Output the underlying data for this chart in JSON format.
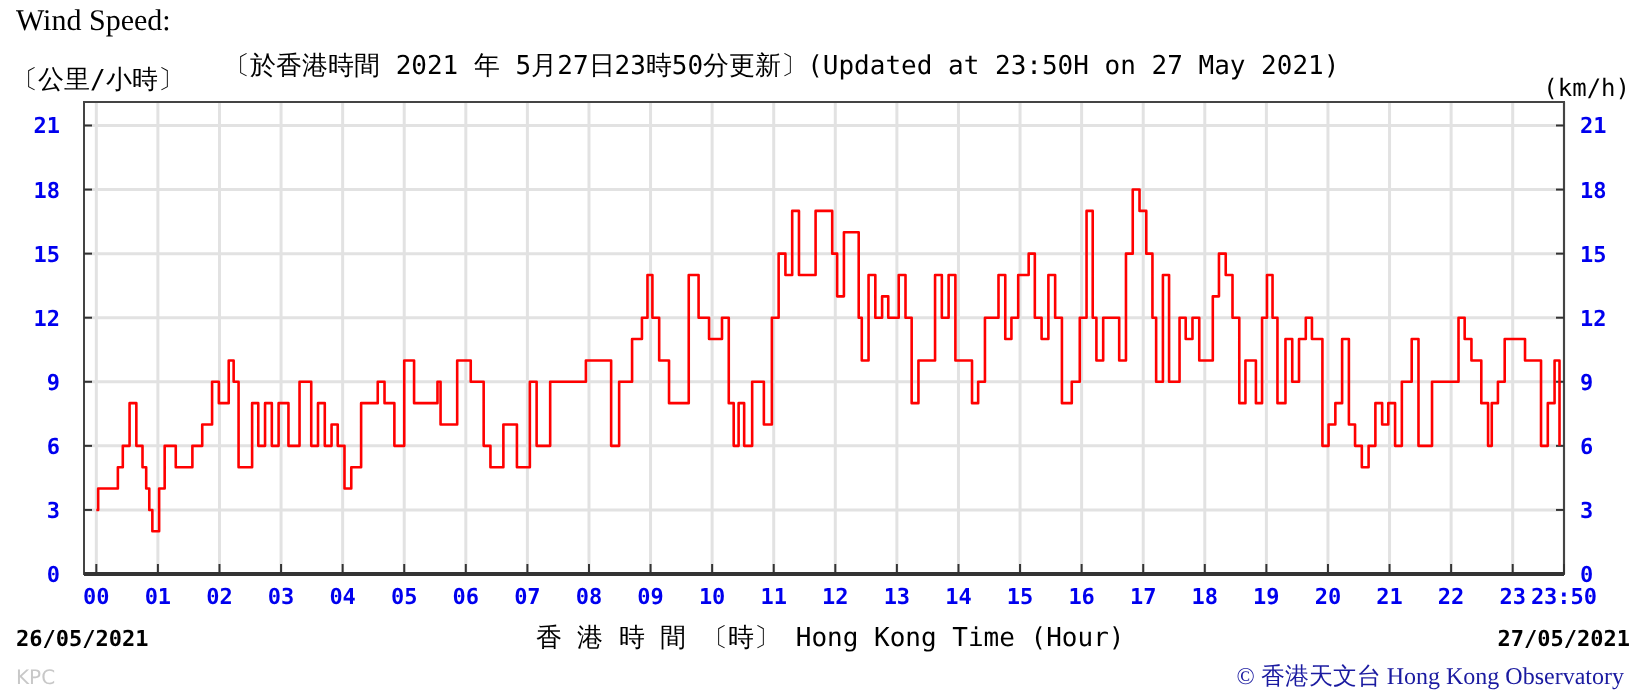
{
  "chart_data": {
    "type": "step",
    "title": "Wind Speed:",
    "subtitle": "〔於香港時間 2021 年 5月27日23時50分更新〕(Updated at 23:50H on 27 May 2021)",
    "ylabel": "〔公里/小時〕",
    "y2label": "(km/h)",
    "xlabel": "香 港 時 間 〔時〕 Hong Kong Time (Hour)",
    "annotations": [
      "26/05/2021",
      "27/05/2021",
      "© 香港天文台 Hong Kong Observatory",
      "KPC"
    ],
    "xlim": [
      -0.2,
      23.833
    ],
    "ylim": [
      0,
      22.1
    ],
    "y2lim": [
      0,
      22.1
    ],
    "xticks": [
      {
        "value": 0,
        "label": "00"
      },
      {
        "value": 1,
        "label": "01"
      },
      {
        "value": 2,
        "label": "02"
      },
      {
        "value": 3,
        "label": "03"
      },
      {
        "value": 4,
        "label": "04"
      },
      {
        "value": 5,
        "label": "05"
      },
      {
        "value": 6,
        "label": "06"
      },
      {
        "value": 7,
        "label": "07"
      },
      {
        "value": 8,
        "label": "08"
      },
      {
        "value": 9,
        "label": "09"
      },
      {
        "value": 10,
        "label": "10"
      },
      {
        "value": 11,
        "label": "11"
      },
      {
        "value": 12,
        "label": "12"
      },
      {
        "value": 13,
        "label": "13"
      },
      {
        "value": 14,
        "label": "14"
      },
      {
        "value": 15,
        "label": "15"
      },
      {
        "value": 16,
        "label": "16"
      },
      {
        "value": 17,
        "label": "17"
      },
      {
        "value": 18,
        "label": "18"
      },
      {
        "value": 19,
        "label": "19"
      },
      {
        "value": 20,
        "label": "20"
      },
      {
        "value": 21,
        "label": "21"
      },
      {
        "value": 22,
        "label": "22"
      },
      {
        "value": 23,
        "label": "23"
      },
      {
        "value": 23.833,
        "label": "23:50"
      }
    ],
    "yticks": [
      0,
      3,
      6,
      9,
      12,
      15,
      18,
      21
    ],
    "y2ticks": [
      0,
      3,
      6,
      9,
      12,
      15,
      18,
      21
    ],
    "grid": true,
    "series": [
      {
        "color": "#ff0000",
        "x": [
          0,
          0.03,
          0.22,
          0.35,
          0.43,
          0.54,
          0.65,
          0.75,
          0.81,
          0.86,
          0.91,
          1.02,
          1.11,
          1.29,
          1.56,
          1.72,
          1.88,
          1.99,
          2.15,
          2.23,
          2.31,
          2.53,
          2.63,
          2.74,
          2.85,
          2.96,
          3.12,
          3.3,
          3.49,
          3.6,
          3.71,
          3.82,
          3.92,
          4.03,
          4.14,
          4.3,
          4.57,
          4.68,
          4.84,
          5.0,
          5.16,
          5.43,
          5.54,
          5.59,
          5.86,
          6.08,
          6.29,
          6.4,
          6.61,
          6.83,
          7.04,
          7.15,
          7.37,
          7.58,
          7.8,
          7.95,
          8.22,
          8.36,
          8.49,
          8.7,
          8.86,
          8.95,
          9.03,
          9.14,
          9.3,
          9.51,
          9.62,
          9.78,
          9.95,
          10.16,
          10.27,
          10.35,
          10.43,
          10.52,
          10.65,
          10.84,
          10.97,
          11.08,
          11.19,
          11.3,
          11.41,
          11.51,
          11.68,
          11.84,
          11.95,
          12.03,
          12.14,
          12.27,
          12.38,
          12.43,
          12.54,
          12.65,
          12.76,
          12.86,
          13.03,
          13.14,
          13.24,
          13.35,
          13.46,
          13.62,
          13.73,
          13.84,
          13.95,
          14.11,
          14.22,
          14.32,
          14.43,
          14.65,
          14.76,
          14.86,
          14.97,
          15.14,
          15.24,
          15.35,
          15.46,
          15.57,
          15.68,
          15.84,
          15.97,
          16.08,
          16.18,
          16.24,
          16.35,
          16.51,
          16.61,
          16.72,
          16.83,
          16.94,
          17.05,
          17.15,
          17.21,
          17.32,
          17.42,
          17.59,
          17.69,
          17.8,
          17.91,
          18.13,
          18.23,
          18.34,
          18.45,
          18.56,
          18.66,
          18.83,
          18.93,
          19.01,
          19.1,
          19.18,
          19.31,
          19.42,
          19.53,
          19.64,
          19.74,
          19.91,
          20.01,
          20.12,
          20.23,
          20.34,
          20.44,
          20.55,
          20.66,
          20.77,
          20.88,
          20.98,
          21.09,
          21.2,
          21.36,
          21.47,
          21.58,
          21.69,
          21.9,
          22.12,
          22.22,
          22.33,
          22.49,
          22.6,
          22.66,
          22.76,
          22.87,
          23.09,
          23.2,
          23.36,
          23.46,
          23.57,
          23.68,
          23.76
        ],
        "values": [
          3,
          4,
          4,
          5,
          6,
          8,
          6,
          5,
          4,
          3,
          2,
          4,
          6,
          5,
          6,
          7,
          9,
          8,
          10,
          9,
          5,
          8,
          6,
          8,
          6,
          8,
          6,
          9,
          6,
          8,
          6,
          7,
          6,
          4,
          5,
          8,
          9,
          8,
          6,
          10,
          8,
          8,
          9,
          7,
          10,
          9,
          6,
          5,
          7,
          5,
          9,
          6,
          9,
          9,
          9,
          10,
          10,
          6,
          9,
          11,
          12,
          14,
          12,
          10,
          8,
          8,
          14,
          12,
          11,
          12,
          8,
          6,
          8,
          6,
          9,
          7,
          12,
          15,
          14,
          17,
          14,
          14,
          17,
          17,
          15,
          13,
          16,
          16,
          12,
          10,
          14,
          12,
          13,
          12,
          14,
          12,
          8,
          10,
          10,
          14,
          12,
          14,
          10,
          10,
          8,
          9,
          12,
          14,
          11,
          12,
          14,
          15,
          12,
          11,
          14,
          12,
          8,
          9,
          12,
          17,
          12,
          10,
          12,
          12,
          10,
          15,
          18,
          17,
          15,
          12,
          9,
          14,
          9,
          12,
          11,
          12,
          10,
          13,
          15,
          14,
          12,
          8,
          10,
          8,
          12,
          14,
          12,
          8,
          11,
          9,
          11,
          12,
          11,
          6,
          7,
          8,
          11,
          7,
          6,
          5,
          6,
          8,
          7,
          8,
          6,
          9,
          11,
          6,
          6,
          9,
          9,
          12,
          11,
          10,
          8,
          6,
          8,
          9,
          11,
          11,
          10,
          10,
          6,
          8,
          10,
          6
        ]
      }
    ]
  }
}
